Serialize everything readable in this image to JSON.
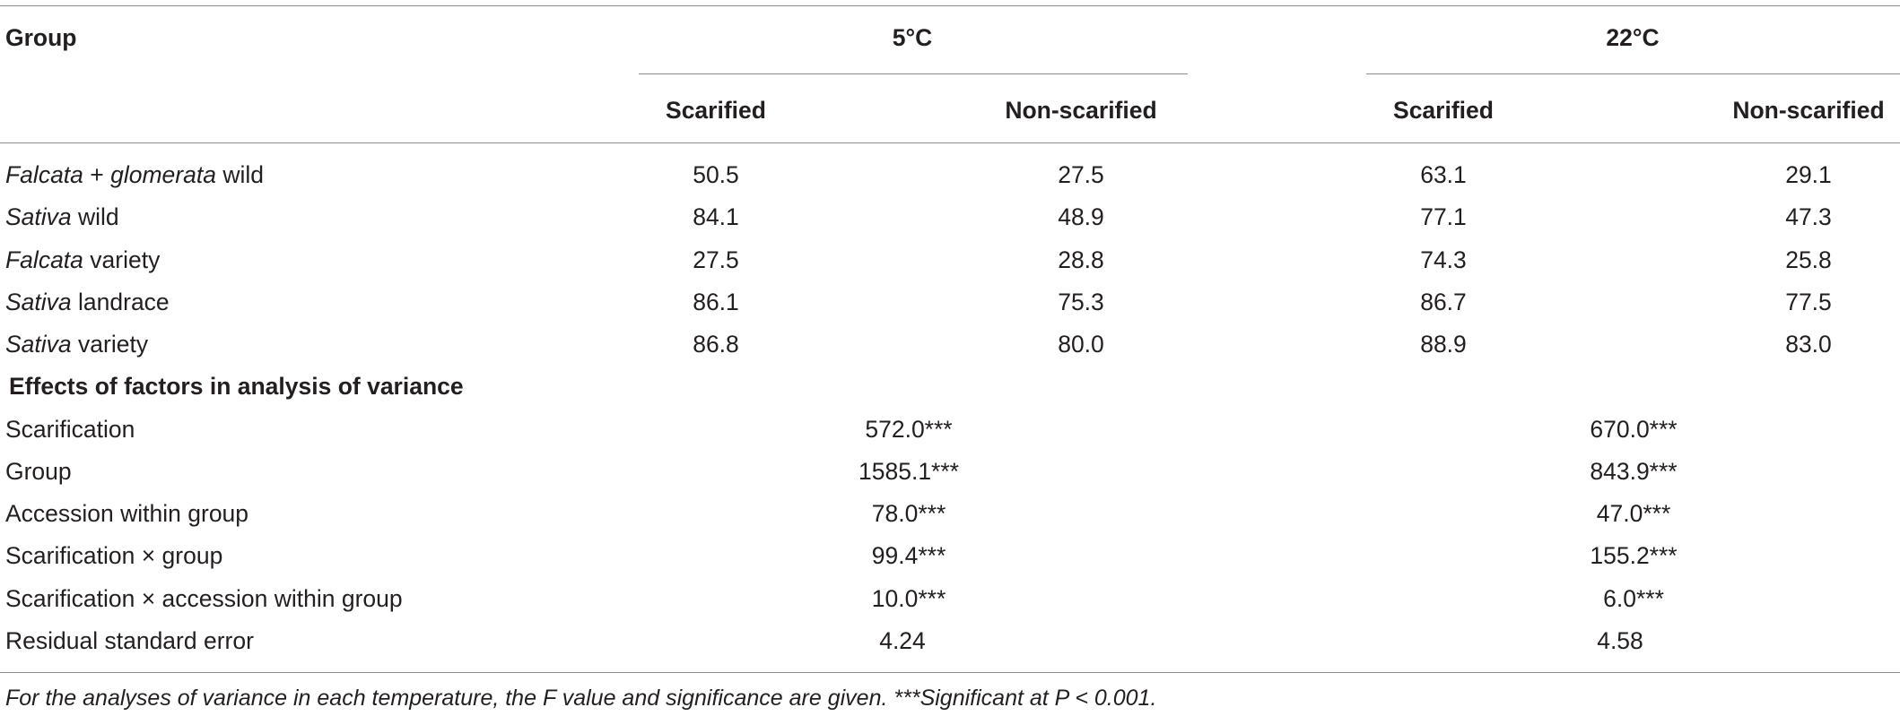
{
  "table": {
    "header": {
      "group": "Group",
      "temps": [
        "5°C",
        "22°C"
      ],
      "cols": [
        "Scarified",
        "Non-scarified",
        "Scarified",
        "Non-scarified"
      ]
    },
    "rows": [
      {
        "name_italic": "Falcata",
        "name_rest": " + ",
        "name_italic2": "glomerata",
        "name_rest2": " wild",
        "values": [
          "50.5",
          "27.5",
          "63.1",
          "29.1"
        ]
      },
      {
        "name_italic": "Sativa",
        "name_rest": " wild",
        "name_italic2": "",
        "name_rest2": "",
        "values": [
          "84.1",
          "48.9",
          "77.1",
          "47.3"
        ]
      },
      {
        "name_italic": "Falcata",
        "name_rest": " variety",
        "name_italic2": "",
        "name_rest2": "",
        "values": [
          "27.5",
          "28.8",
          "74.3",
          "25.8"
        ]
      },
      {
        "name_italic": "Sativa",
        "name_rest": " landrace",
        "name_italic2": "",
        "name_rest2": "",
        "values": [
          "86.1",
          "75.3",
          "86.7",
          "77.5"
        ]
      },
      {
        "name_italic": "Sativa",
        "name_rest": " variety",
        "name_italic2": "",
        "name_rest2": "",
        "values": [
          "86.8",
          "80.0",
          "88.9",
          "83.0"
        ]
      }
    ],
    "anova_title": "Effects of factors in analysis of variance",
    "anova_rows": [
      {
        "name": "Scarification",
        "values": [
          "572.0***",
          "670.0***"
        ]
      },
      {
        "name": "Group",
        "values": [
          "1585.1***",
          "843.9***"
        ]
      },
      {
        "name": "Accession within group",
        "values": [
          "78.0***",
          "47.0***"
        ]
      },
      {
        "name": "Scarification × group",
        "values": [
          "99.4***",
          "155.2***"
        ]
      },
      {
        "name": "Scarification × accession within group",
        "values": [
          "10.0***",
          "6.0***"
        ]
      },
      {
        "name": "Residual standard error",
        "values": [
          "4.24",
          "4.58"
        ]
      }
    ],
    "footnote": "For the analyses of variance in each temperature, the F value and significance are given. ***Significant at P < 0.001."
  }
}
